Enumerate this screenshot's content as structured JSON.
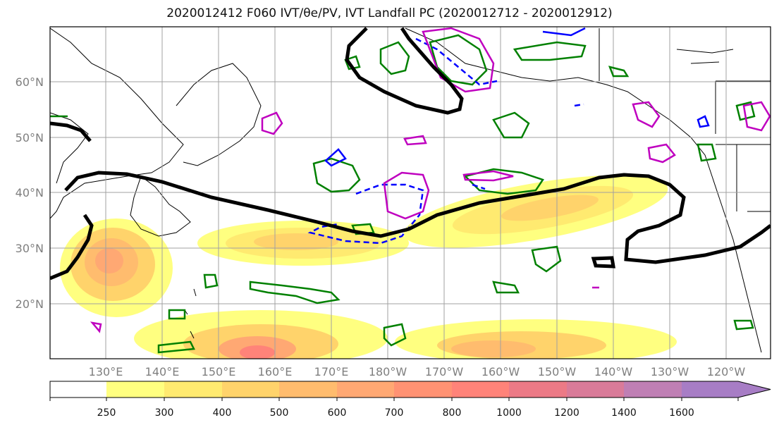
{
  "figure": {
    "title": "2020012412 F060 IVT/θe/PV, IVT Landfall PC (2020012712 - 2020012912)"
  },
  "map": {
    "extent": {
      "lon_min": 120,
      "lon_max": 248,
      "lat_min": 10,
      "lat_max": 70
    },
    "lat_ticks": [
      {
        "value": 20,
        "label": "20°N"
      },
      {
        "value": 30,
        "label": "30°N"
      },
      {
        "value": 40,
        "label": "40°N"
      },
      {
        "value": 50,
        "label": "50°N"
      },
      {
        "value": 60,
        "label": "60°N"
      }
    ],
    "lon_ticks": [
      {
        "value": 130,
        "label": "130°E"
      },
      {
        "value": 140,
        "label": "140°E"
      },
      {
        "value": 150,
        "label": "150°E"
      },
      {
        "value": 160,
        "label": "160°E"
      },
      {
        "value": 170,
        "label": "170°E"
      },
      {
        "value": 180,
        "label": "180°W"
      },
      {
        "value": 190,
        "label": "170°W"
      },
      {
        "value": 200,
        "label": "160°W"
      },
      {
        "value": 210,
        "label": "150°W"
      },
      {
        "value": 220,
        "label": "140°W"
      },
      {
        "value": 230,
        "label": "130°W"
      },
      {
        "value": 240,
        "label": "120°W"
      }
    ],
    "grid": true,
    "colors": {
      "pc_contour": "#000000",
      "theta_e_contour": "#0000ff",
      "pv_contour": "#bf00bf",
      "green_contour": "#008000",
      "coastline": "#000000"
    }
  },
  "colorbar": {
    "levels": [
      {
        "label": "250",
        "color": "#ffff80"
      },
      {
        "label": "300",
        "color": "#ffea70"
      },
      {
        "label": "400",
        "color": "#ffd36b"
      },
      {
        "label": "500",
        "color": "#ffbc6e"
      },
      {
        "label": "600",
        "color": "#ffa873"
      },
      {
        "label": "700",
        "color": "#ff9273"
      },
      {
        "label": "800",
        "color": "#ff8379"
      },
      {
        "label": "1000",
        "color": "#ec7a86"
      },
      {
        "label": "1200",
        "color": "#d97b99"
      },
      {
        "label": "1400",
        "color": "#bf7fb4"
      },
      {
        "label": "1600",
        "color": "#a77dc5"
      }
    ],
    "under_color": "#ffffff",
    "extend": "max"
  }
}
